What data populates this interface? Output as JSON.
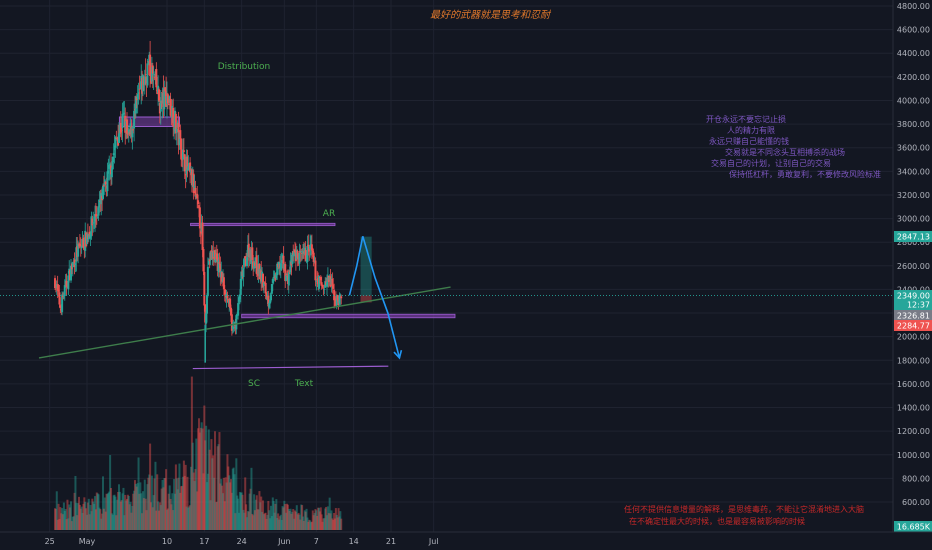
{
  "colors": {
    "background": "#131722",
    "up": "#26a69a",
    "down": "#ef5350",
    "grid": "#1f2330",
    "axis_text": "#b2b5be",
    "title": "#e0782b",
    "trendline": "#3e7d4b",
    "purple": "#7b3fa5",
    "wyckoff_label": "#4caf50",
    "arrow": "#2196f3",
    "notes_text": "#7e57c2",
    "disclaimer_text": "#c62828"
  },
  "header": {
    "title": "最好的武器就是思考和忍耐"
  },
  "annotations": {
    "distribution": "Distribution",
    "ar": "AR",
    "sc": "SC",
    "text": "Text"
  },
  "notes": [
    "开仓永远不要忘记止损",
    "人的精力有限",
    "永远只赚自己能懂的钱",
    "交易就是不同念头互相搏杀的战场",
    "交易自己的计划，让别自己的交易",
    "保持低杠杆，勇敢复利，不要修改风险标准"
  ],
  "disclaimer": [
    "任何不提供信息增量的解释，是思维毒药，不能让它混淆地进入大脑",
    "在不确定性最大的时候，也是最容易被影响的时候"
  ],
  "price_labels": {
    "upper": "2847.13",
    "current": "2349.00",
    "countdown": "12:37",
    "mid": "2326.81",
    "lower": "2284.77",
    "volume": "16.685K"
  },
  "chart_data": {
    "type": "candlestick",
    "title": "最好的武器就是思考和忍耐",
    "y_axis": {
      "ylim": [
        350,
        4900
      ],
      "ticks": [
        4800,
        4600,
        4400,
        4200,
        4000,
        3800,
        3600,
        3400,
        3200,
        3000,
        2800,
        2600,
        2400,
        2200,
        2000,
        1800,
        1600,
        1400,
        1200,
        1000,
        800,
        600
      ],
      "tick_labels": [
        "4800.00",
        "4600.00",
        "4400.00",
        "4200.00",
        "4000.00",
        "3800.00",
        "3600.00",
        "3400.00",
        "3200.00",
        "3000.00",
        "2800.00",
        "2600.00",
        "2400.00",
        "2200.00",
        "2000.00",
        "1800.00",
        "1600.00",
        "1400.00",
        "1200.00",
        "1000.00",
        "800.00",
        "600.00"
      ]
    },
    "x_axis": {
      "tick_labels": [
        "25",
        "May",
        "10",
        "17",
        "24",
        "Jun",
        "7",
        "14",
        "21",
        "Jul"
      ],
      "tick_hours": [
        -24,
        144,
        504,
        672,
        840,
        1032,
        1176,
        1344,
        1512,
        1704
      ]
    },
    "time_unit": "hours since Apr 26 00:00",
    "candle_interval_hours": 4,
    "close_path": [
      [
        0,
        2480
      ],
      [
        24,
        2250
      ],
      [
        60,
        2500
      ],
      [
        96,
        2700
      ],
      [
        144,
        2850
      ],
      [
        200,
        3100
      ],
      [
        240,
        3350
      ],
      [
        280,
        3700
      ],
      [
        310,
        3850
      ],
      [
        330,
        3650
      ],
      [
        380,
        4050
      ],
      [
        420,
        4300
      ],
      [
        450,
        4150
      ],
      [
        475,
        3950
      ],
      [
        500,
        4050
      ],
      [
        530,
        3900
      ],
      [
        580,
        3500
      ],
      [
        620,
        3300
      ],
      [
        660,
        2900
      ],
      [
        676,
        2100
      ],
      [
        690,
        2650
      ],
      [
        720,
        2700
      ],
      [
        750,
        2500
      ],
      [
        780,
        2300
      ],
      [
        800,
        2050
      ],
      [
        818,
        2150
      ],
      [
        840,
        2500
      ],
      [
        870,
        2750
      ],
      [
        900,
        2620
      ],
      [
        930,
        2500
      ],
      [
        960,
        2300
      ],
      [
        990,
        2500
      ],
      [
        1020,
        2650
      ],
      [
        1045,
        2480
      ],
      [
        1075,
        2700
      ],
      [
        1110,
        2650
      ],
      [
        1150,
        2750
      ],
      [
        1175,
        2500
      ],
      [
        1205,
        2420
      ],
      [
        1235,
        2480
      ],
      [
        1265,
        2300
      ],
      [
        1290,
        2330
      ]
    ],
    "volume_envelope": [
      [
        0,
        120
      ],
      [
        150,
        160
      ],
      [
        400,
        240
      ],
      [
        600,
        320
      ],
      [
        676,
        700
      ],
      [
        700,
        420
      ],
      [
        800,
        320
      ],
      [
        820,
        220
      ],
      [
        1000,
        140
      ],
      [
        1200,
        110
      ],
      [
        1290,
        100
      ]
    ],
    "drawings": {
      "trendline": {
        "x": [
          -72,
          1780
        ],
        "y": [
          1820,
          2420
        ]
      },
      "distribution_zone": {
        "x": [
          290,
          560
        ],
        "y": [
          3780,
          3860
        ]
      },
      "ar_line": {
        "x": [
          610,
          1260
        ],
        "y": [
          2940,
          2960
        ]
      },
      "support_line": {
        "x": [
          840,
          1800
        ],
        "y": [
          2160,
          2190
        ]
      },
      "sc_line": {
        "x": [
          620,
          1500
        ],
        "y": [
          1730,
          1750
        ]
      },
      "sc_marker": {
        "x": 676,
        "y": [
          1780,
          2100
        ]
      },
      "projection_path": {
        "x": [
          1325,
          1358,
          1385,
          1440,
          1498,
          1550
        ],
        "y": [
          2350,
          2600,
          2850,
          2500,
          2200,
          1820
        ]
      },
      "position_box": {
        "x": [
          1375,
          1425
        ],
        "y_entry": 2349,
        "y_target": 2847,
        "y_stop": 2290
      }
    },
    "legend": "none",
    "grid": true
  }
}
